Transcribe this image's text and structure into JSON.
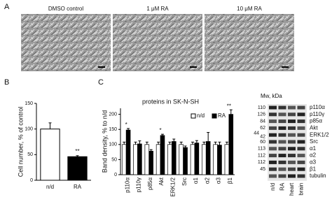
{
  "figure": {
    "panel_labels": [
      "A",
      "B",
      "C"
    ],
    "micrographs": [
      "DMSO control",
      "1 μM RA",
      "10 μM RA"
    ],
    "blot": {
      "mw_title": "Mw, kDa",
      "mw": [
        "110",
        "126",
        "84",
        "62",
        "44",
        "42",
        "60",
        "113",
        "112",
        "112",
        "45"
      ],
      "proteins": [
        "p110α",
        "p110γ",
        "p85α",
        "Akt",
        "ERK1/2",
        "Src",
        "α1",
        "α2",
        "α3",
        "β1",
        "tubulin"
      ],
      "lanes": [
        "n/d",
        "RA",
        "heart",
        "brain"
      ]
    }
  },
  "chart_data": [
    {
      "type": "bar",
      "ylabel": "Cell number, % of control",
      "categories": [
        "n/d",
        "RA"
      ],
      "values": [
        100,
        46
      ],
      "errors": [
        12,
        2
      ],
      "colors": [
        "#ffffff",
        "#000000"
      ],
      "annotations": [
        null,
        "**"
      ],
      "ylim": [
        0,
        150
      ],
      "yticks": [
        0,
        50,
        100,
        150
      ]
    },
    {
      "type": "grouped_bar",
      "title": "proteins in SK-N-SH",
      "ylabel": "Band density, % to n/d",
      "categories": [
        "p110α",
        "p110γ",
        "p85α",
        "Akt",
        "ERK1/2",
        "Src",
        "α1",
        "α2",
        "α3",
        "β1"
      ],
      "series": [
        {
          "name": "n/d",
          "color": "#ffffff",
          "values": [
            100,
            100,
            100,
            100,
            100,
            100,
            100,
            100,
            100,
            100
          ],
          "errors": [
            8,
            8,
            8,
            8,
            8,
            8,
            8,
            8,
            8,
            8
          ]
        },
        {
          "name": "RA",
          "color": "#000000",
          "values": [
            148,
            102,
            78,
            130,
            110,
            90,
            105,
            110,
            98,
            200
          ],
          "errors": [
            5,
            10,
            5,
            4,
            8,
            5,
            8,
            30,
            10,
            15
          ]
        }
      ],
      "annotations": [
        "*",
        null,
        null,
        "*",
        null,
        null,
        null,
        null,
        null,
        "**"
      ],
      "ylim": [
        0,
        220
      ],
      "yticks": [
        0,
        50,
        100,
        150,
        200
      ],
      "legend": "top-right"
    }
  ]
}
